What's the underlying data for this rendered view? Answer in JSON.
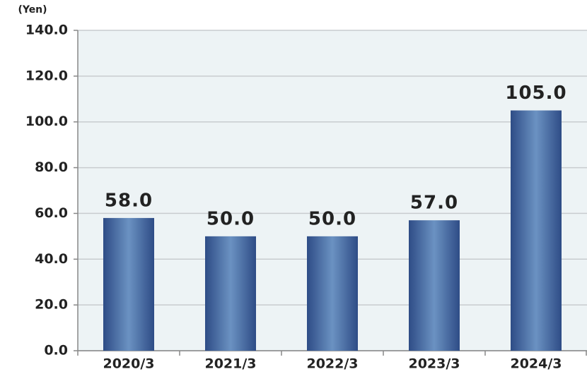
{
  "chart_data": {
    "type": "bar",
    "y_label": "(Yen)",
    "categories": [
      "2020/3",
      "2021/3",
      "2022/3",
      "2023/3",
      "2024/3"
    ],
    "values": [
      58,
      50,
      50,
      57,
      105
    ],
    "value_labels": [
      "58.0",
      "50.0",
      "50.0",
      "57.0",
      "105.0"
    ],
    "color": "#3e5f96",
    "ylim": [
      0,
      140
    ],
    "yticks": [
      {
        "value": 0,
        "label": "0.0"
      },
      {
        "value": 20,
        "label": "20.0"
      },
      {
        "value": 40,
        "label": "40.0"
      },
      {
        "value": 60,
        "label": "60.0"
      },
      {
        "value": 80,
        "label": "80.0"
      },
      {
        "value": 100,
        "label": "100.0"
      },
      {
        "value": 120,
        "label": "120.0"
      },
      {
        "value": 140,
        "label": "140.0"
      }
    ],
    "grid": true
  }
}
